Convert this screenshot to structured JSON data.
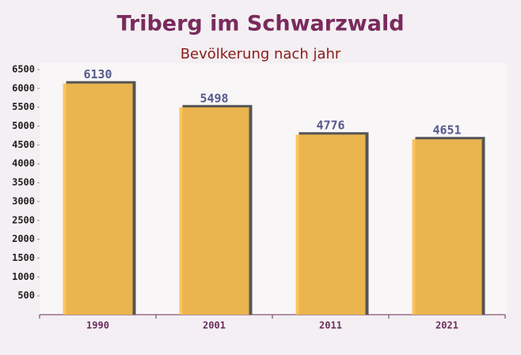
{
  "chart_data": {
    "type": "bar",
    "title": "Triberg im Schwarzwald",
    "subtitle": "Bevölkerung nach jahr",
    "categories": [
      "1990",
      "2001",
      "2011",
      "2021"
    ],
    "values": [
      6130,
      5498,
      4776,
      4651
    ],
    "color": "#fbbf4e",
    "ylim": [
      0,
      6500
    ],
    "yticks": [
      500,
      1000,
      1500,
      2000,
      2500,
      3000,
      3500,
      4000,
      4500,
      5000,
      5500,
      6000,
      6500
    ],
    "grid": false
  }
}
